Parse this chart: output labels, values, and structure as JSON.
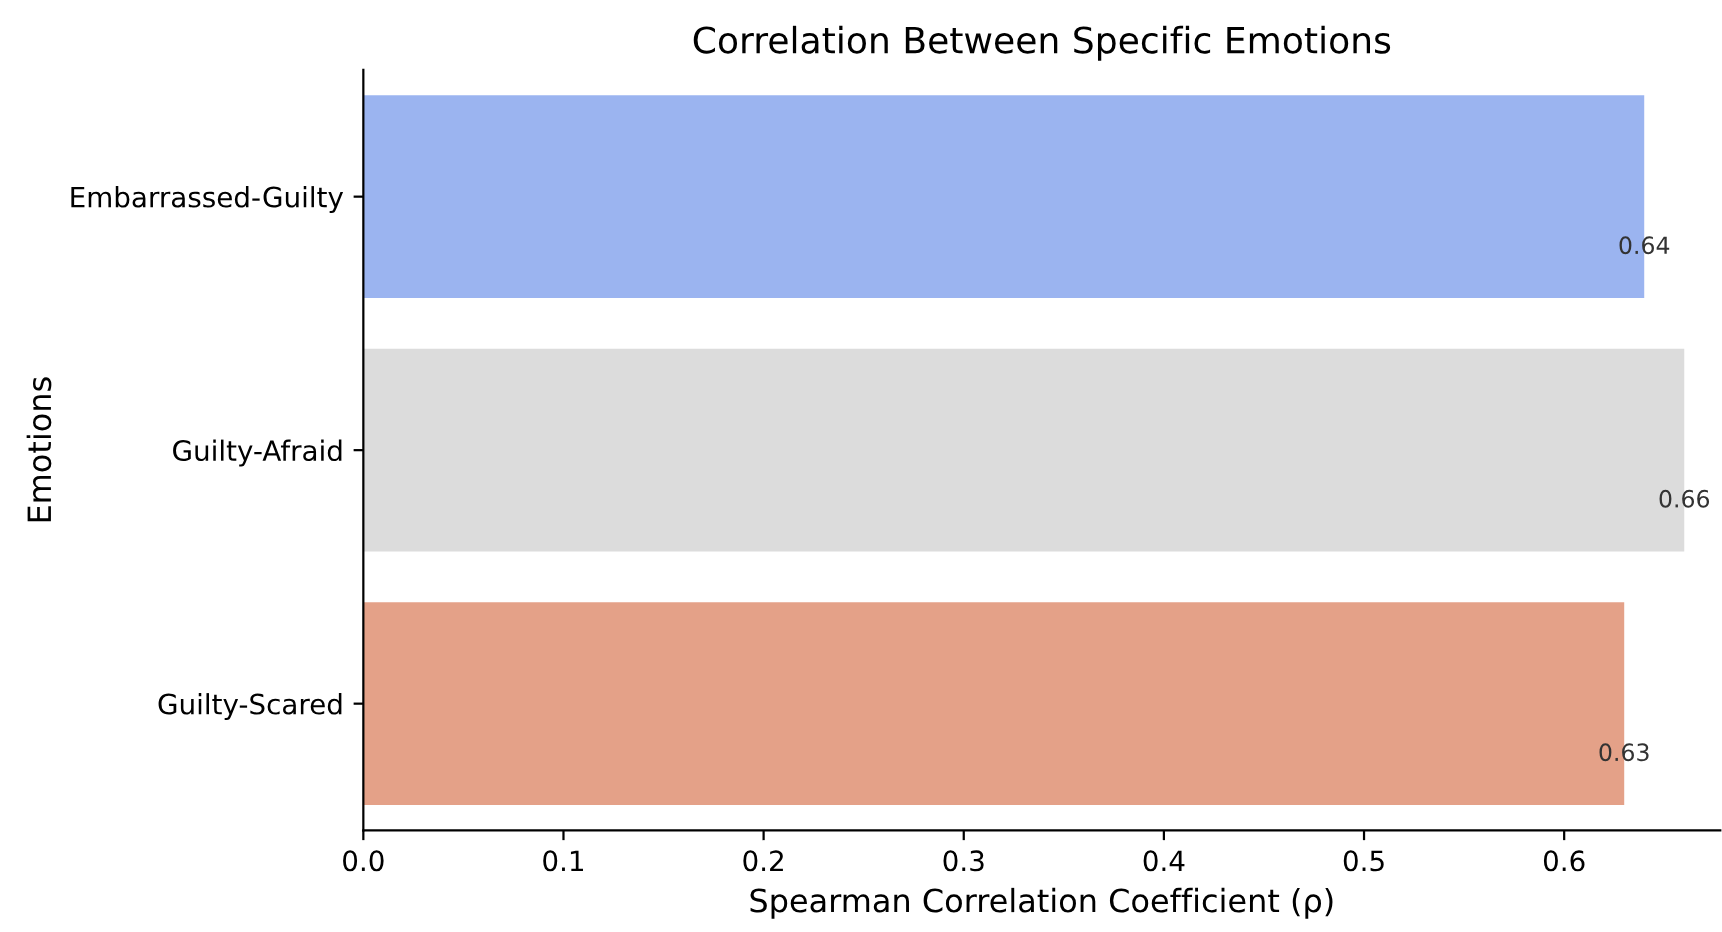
{
  "chart_data": {
    "type": "bar",
    "orientation": "horizontal",
    "title": "Correlation Between Specific Emotions",
    "xlabel": "Spearman Correlation Coefficient (ρ)",
    "ylabel": "Emotions",
    "categories": [
      "Embarrassed-Guilty",
      "Guilty-Afraid",
      "Guilty-Scared"
    ],
    "values": [
      0.64,
      0.66,
      0.63
    ],
    "colors": [
      "#9bb4f0",
      "#dcdcdc",
      "#e4a188"
    ],
    "xlim": [
      0,
      0.678
    ],
    "xticks": [
      {
        "value": 0,
        "label": "0.0"
      },
      {
        "value": 0.1,
        "label": "0.1"
      },
      {
        "value": 0.2,
        "label": "0.2"
      },
      {
        "value": 0.3,
        "label": "0.3"
      },
      {
        "value": 0.4,
        "label": "0.4"
      },
      {
        "value": 0.5,
        "label": "0.5"
      },
      {
        "value": 0.6,
        "label": "0.6"
      }
    ],
    "data_labels": true,
    "grid": false
  }
}
